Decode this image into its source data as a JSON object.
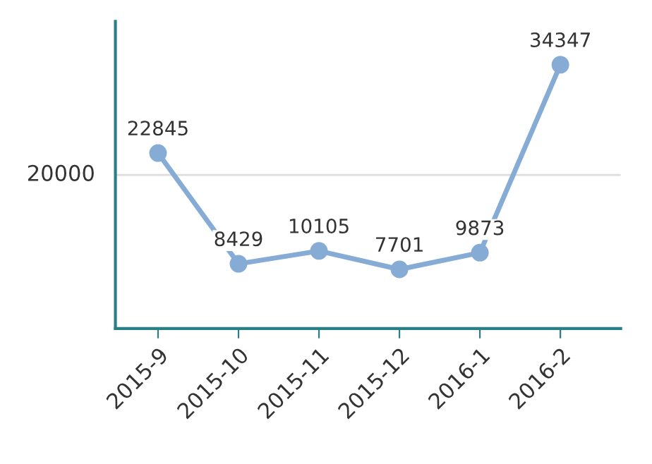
{
  "chart_data": {
    "type": "line",
    "categories": [
      "2015-9",
      "2015-10",
      "2015-11",
      "2015-12",
      "2016-1",
      "2016-2"
    ],
    "series": [
      {
        "color": "#86acd6",
        "values": [
          22845,
          8429,
          10105,
          7701,
          9873,
          34347
        ]
      }
    ],
    "ylim": [
      0,
      40000
    ],
    "ref_lines": [
      {
        "axis": "y",
        "value": 20000,
        "label": "20000",
        "color": "#dddddd"
      }
    ],
    "marker": "circle",
    "line_style": "solid",
    "data_labels": true
  }
}
